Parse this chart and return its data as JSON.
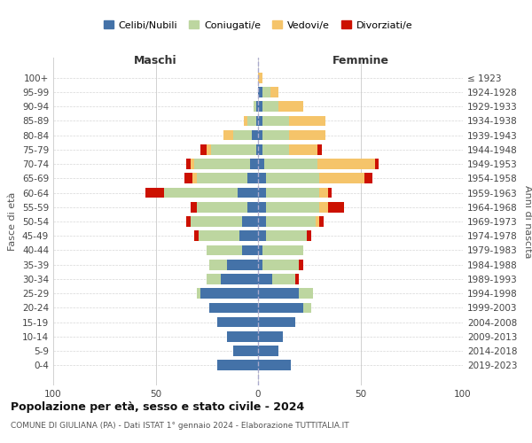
{
  "age_groups": [
    "100+",
    "95-99",
    "90-94",
    "85-89",
    "80-84",
    "75-79",
    "70-74",
    "65-69",
    "60-64",
    "55-59",
    "50-54",
    "45-49",
    "40-44",
    "35-39",
    "30-34",
    "25-29",
    "20-24",
    "15-19",
    "10-14",
    "5-9",
    "0-4"
  ],
  "birth_years": [
    "≤ 1923",
    "1924-1928",
    "1929-1933",
    "1934-1938",
    "1939-1943",
    "1944-1948",
    "1949-1953",
    "1954-1958",
    "1959-1963",
    "1964-1968",
    "1969-1973",
    "1974-1978",
    "1979-1983",
    "1984-1988",
    "1989-1993",
    "1994-1998",
    "1999-2003",
    "2004-2008",
    "2009-2013",
    "2014-2018",
    "2019-2023"
  ],
  "colors": {
    "celibe": "#4472a8",
    "coniugato": "#bdd6a0",
    "vedovo": "#f5c46a",
    "divorziato": "#cc1100"
  },
  "maschi": {
    "celibe": [
      0,
      0,
      1,
      1,
      3,
      1,
      4,
      5,
      10,
      5,
      8,
      9,
      8,
      15,
      18,
      28,
      24,
      20,
      15,
      12,
      20
    ],
    "coniugato": [
      0,
      0,
      1,
      4,
      9,
      22,
      27,
      25,
      36,
      25,
      25,
      20,
      17,
      9,
      7,
      2,
      0,
      0,
      0,
      0,
      0
    ],
    "vedovo": [
      0,
      0,
      0,
      2,
      5,
      2,
      2,
      2,
      0,
      0,
      0,
      0,
      0,
      0,
      0,
      0,
      0,
      0,
      0,
      0,
      0
    ],
    "divorziato": [
      0,
      0,
      0,
      0,
      0,
      3,
      2,
      4,
      9,
      3,
      2,
      2,
      0,
      0,
      0,
      0,
      0,
      0,
      0,
      0,
      0
    ]
  },
  "femmine": {
    "nubile": [
      0,
      2,
      2,
      2,
      2,
      2,
      3,
      4,
      4,
      4,
      4,
      4,
      2,
      2,
      7,
      20,
      22,
      18,
      12,
      10,
      16
    ],
    "coniugata": [
      0,
      4,
      8,
      13,
      13,
      13,
      26,
      26,
      26,
      26,
      24,
      20,
      20,
      18,
      11,
      7,
      4,
      0,
      0,
      0,
      0
    ],
    "vedova": [
      2,
      4,
      12,
      18,
      18,
      14,
      28,
      22,
      4,
      4,
      2,
      0,
      0,
      0,
      0,
      0,
      0,
      0,
      0,
      0,
      0
    ],
    "divorziata": [
      0,
      0,
      0,
      0,
      0,
      2,
      2,
      4,
      2,
      8,
      2,
      2,
      0,
      2,
      2,
      0,
      0,
      0,
      0,
      0,
      0
    ]
  },
  "title": "Popolazione per età, sesso e stato civile - 2024",
  "subtitle": "COMUNE DI GIULIANA (PA) - Dati ISTAT 1° gennaio 2024 - Elaborazione TUTTITALIA.IT",
  "xlabel_left": "Maschi",
  "xlabel_right": "Femmine",
  "ylabel_left": "Fasce di età",
  "ylabel_right": "Anni di nascita",
  "xlim": 100,
  "legend_labels": [
    "Celibi/Nubili",
    "Coniugati/e",
    "Vedovi/e",
    "Divorziati/e"
  ],
  "background_color": "#ffffff",
  "grid_color": "#cccccc"
}
